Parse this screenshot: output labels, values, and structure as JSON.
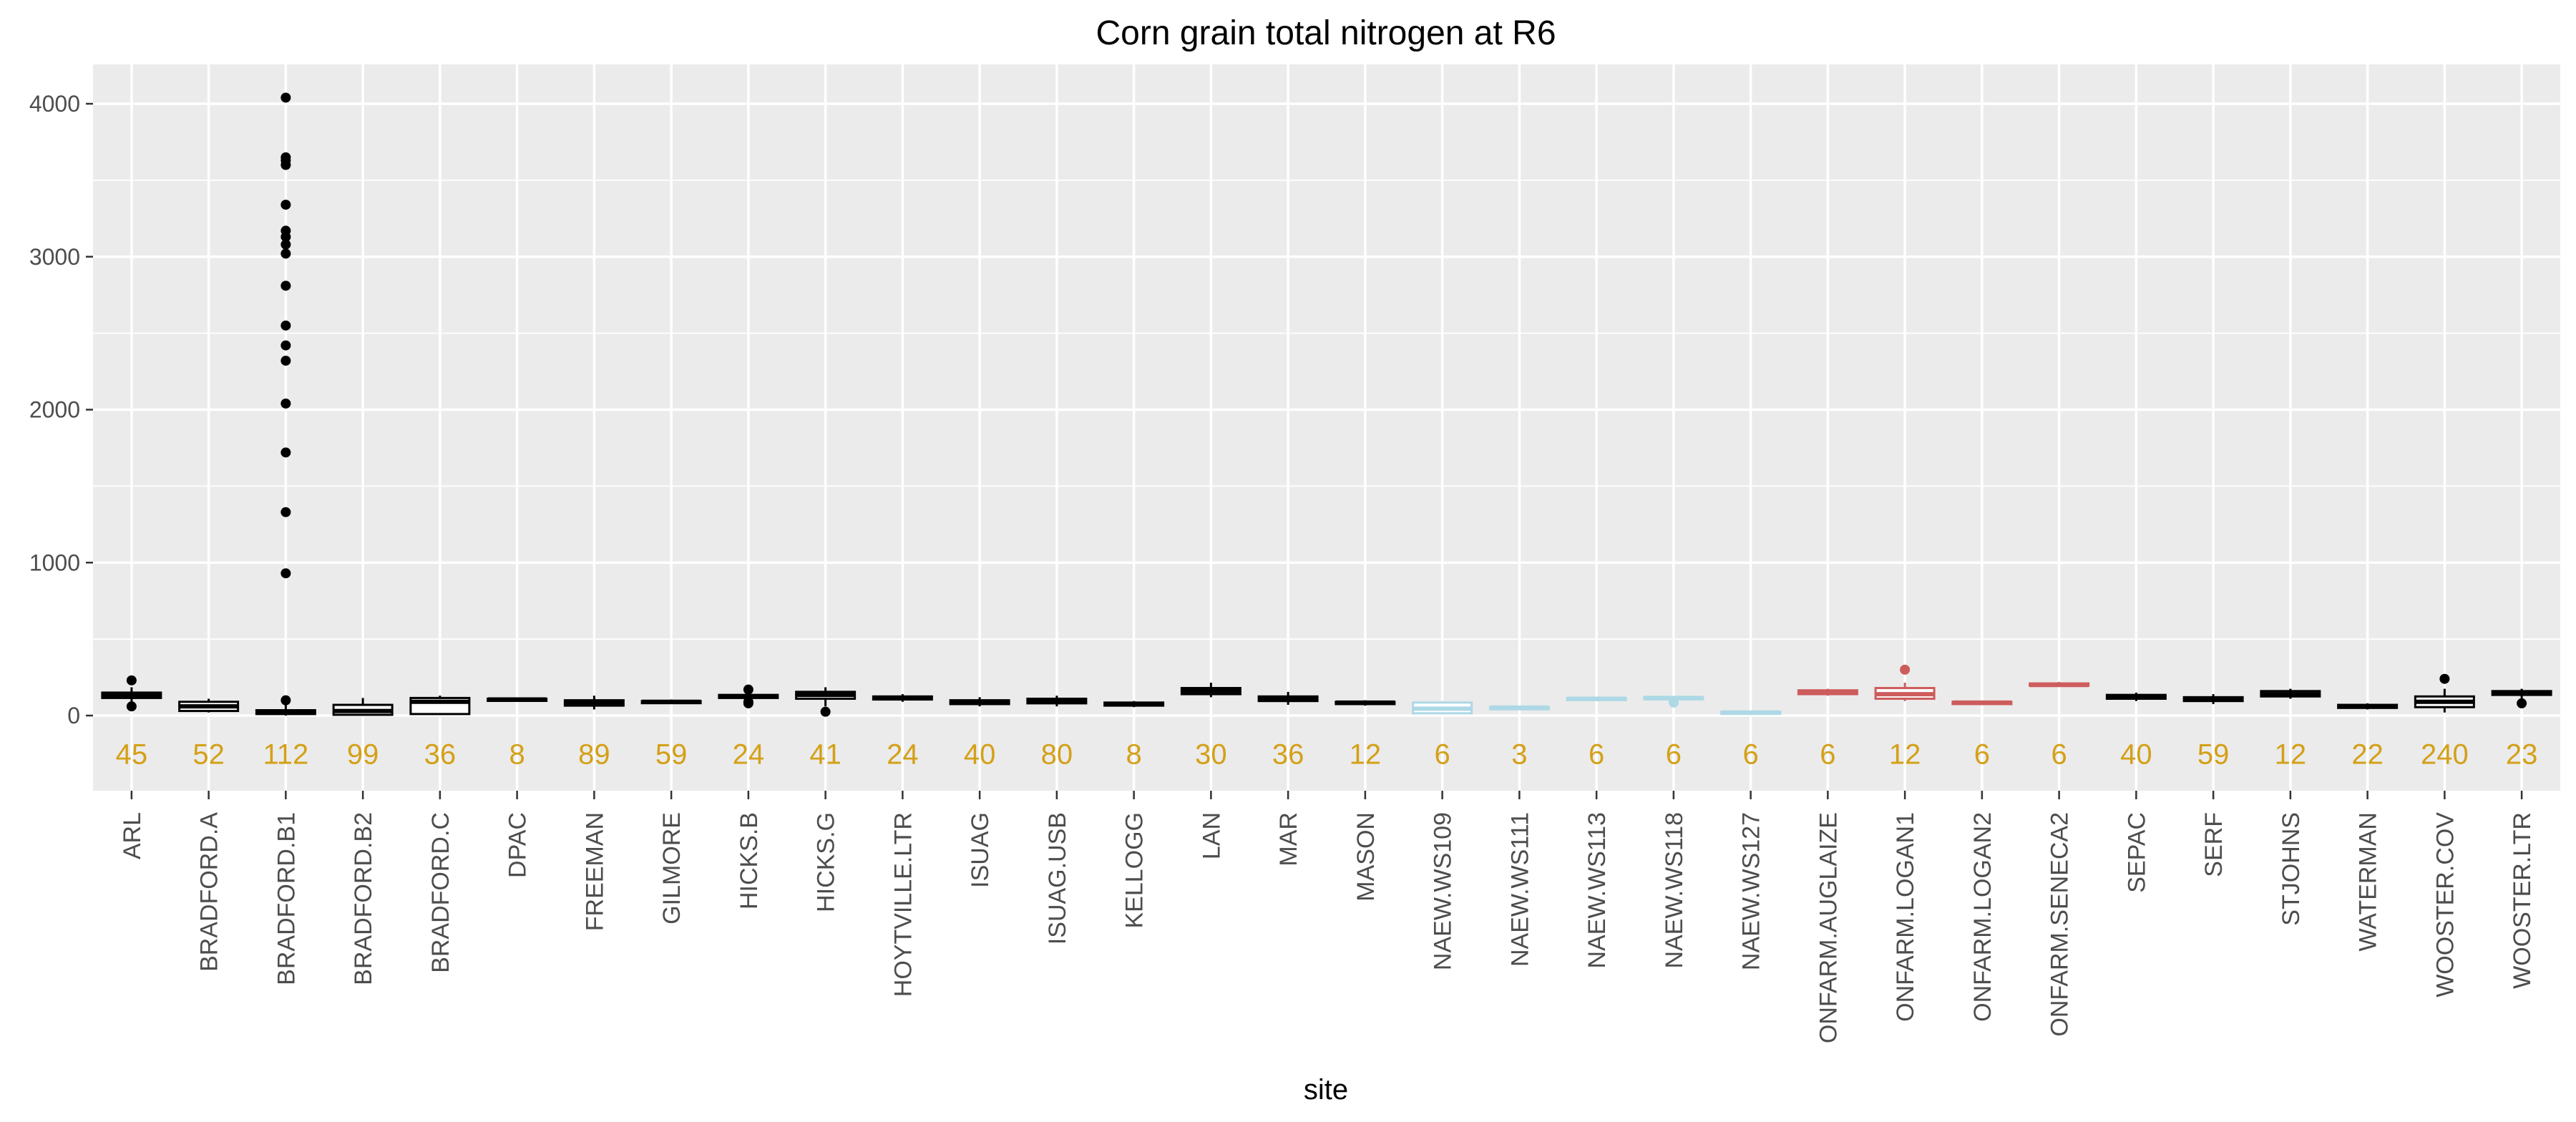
{
  "chart_data": {
    "type": "box",
    "title": "Corn grain total nitrogen at R6",
    "xlabel": "site",
    "ylabel": "",
    "ylim": [
      -500,
      4250
    ],
    "yticks": [
      0,
      1000,
      2000,
      3000,
      4000
    ],
    "grid": true,
    "legend": "none",
    "colors": {
      "panel": "#ebebeb",
      "grid": "#ffffff",
      "default": "#000000",
      "lightblue": "#add8e6",
      "red": "#cd5c5c",
      "count": "#d4a017"
    },
    "categories": [
      "ARL",
      "BRADFORD.A",
      "BRADFORD.B1",
      "BRADFORD.B2",
      "BRADFORD.C",
      "DPAC",
      "FREEMAN",
      "GILMORE",
      "HICKS.B",
      "HICKS.G",
      "HOYTVILLE.LTR",
      "ISUAG",
      "ISUAG.USB",
      "KELLOGG",
      "LAN",
      "MAR",
      "MASON",
      "NAEW.WS109",
      "NAEW.WS111",
      "NAEW.WS113",
      "NAEW.WS118",
      "NAEW.WS127",
      "ONFARM.AUGLAIZE",
      "ONFARM.LOGAN1",
      "ONFARM.LOGAN2",
      "ONFARM.SENECA2",
      "SEPAC",
      "SERF",
      "STJOHNS",
      "WATERMAN",
      "WOOSTER.COV",
      "WOOSTER.LTR"
    ],
    "counts": [
      "45",
      "52",
      "112",
      "99",
      "36",
      "8",
      "89",
      "59",
      "24",
      "41",
      "24",
      "40",
      "80",
      "8",
      "30",
      "36",
      "12",
      "6",
      "3",
      "6",
      "6",
      "6",
      "6",
      "12",
      "6",
      "6",
      "40",
      "59",
      "12",
      "22",
      "240",
      "23"
    ],
    "count_y": -250,
    "boxes": [
      {
        "min": 70,
        "q1": 115,
        "median": 130,
        "q3": 150,
        "max": 185,
        "outliers": [
          60,
          230
        ],
        "color": "default"
      },
      {
        "min": 20,
        "q1": 30,
        "median": 60,
        "q3": 90,
        "max": 110,
        "outliers": [],
        "color": "default"
      },
      {
        "min": 0,
        "q1": 10,
        "median": 20,
        "q3": 35,
        "max": 80,
        "outliers": [
          100,
          930,
          1330,
          1720,
          2040,
          2320,
          2420,
          2550,
          2810,
          3020,
          3080,
          3130,
          3170,
          3340,
          3600,
          3630,
          3650,
          4040
        ],
        "color": "default"
      },
      {
        "min": 0,
        "q1": 5,
        "median": 30,
        "q3": 70,
        "max": 115,
        "outliers": [],
        "color": "default"
      },
      {
        "min": 5,
        "q1": 10,
        "median": 90,
        "q3": 115,
        "max": 130,
        "outliers": [],
        "color": "default"
      },
      {
        "min": 95,
        "q1": 100,
        "median": 105,
        "q3": 110,
        "max": 115,
        "outliers": [],
        "color": "default"
      },
      {
        "min": 40,
        "q1": 65,
        "median": 85,
        "q3": 100,
        "max": 130,
        "outliers": [],
        "color": "default"
      },
      {
        "min": 75,
        "q1": 85,
        "median": 90,
        "q3": 95,
        "max": 105,
        "outliers": [],
        "color": "default"
      },
      {
        "min": 100,
        "q1": 115,
        "median": 125,
        "q3": 135,
        "max": 150,
        "outliers": [
          80,
          90,
          170
        ],
        "color": "default"
      },
      {
        "min": 60,
        "q1": 110,
        "median": 135,
        "q3": 155,
        "max": 185,
        "outliers": [
          25
        ],
        "color": "default"
      },
      {
        "min": 90,
        "q1": 105,
        "median": 115,
        "q3": 125,
        "max": 140,
        "outliers": [],
        "color": "default"
      },
      {
        "min": 60,
        "q1": 75,
        "median": 85,
        "q3": 100,
        "max": 120,
        "outliers": [],
        "color": "default"
      },
      {
        "min": 60,
        "q1": 80,
        "median": 95,
        "q3": 110,
        "max": 130,
        "outliers": [],
        "color": "default"
      },
      {
        "min": 55,
        "q1": 65,
        "median": 75,
        "q3": 85,
        "max": 95,
        "outliers": [],
        "color": "default"
      },
      {
        "min": 120,
        "q1": 140,
        "median": 160,
        "q3": 180,
        "max": 215,
        "outliers": [],
        "color": "default"
      },
      {
        "min": 70,
        "q1": 95,
        "median": 110,
        "q3": 125,
        "max": 155,
        "outliers": [],
        "color": "default"
      },
      {
        "min": 65,
        "q1": 75,
        "median": 85,
        "q3": 90,
        "max": 100,
        "outliers": [],
        "color": "default"
      },
      {
        "min": 10,
        "q1": 15,
        "median": 45,
        "q3": 85,
        "max": 95,
        "outliers": [],
        "color": "lightblue"
      },
      {
        "min": 45,
        "q1": 48,
        "median": 52,
        "q3": 55,
        "max": 58,
        "outliers": [],
        "color": "lightblue"
      },
      {
        "min": 100,
        "q1": 105,
        "median": 110,
        "q3": 115,
        "max": 120,
        "outliers": [],
        "color": "lightblue"
      },
      {
        "min": 105,
        "q1": 110,
        "median": 115,
        "q3": 120,
        "max": 125,
        "outliers": [
          85
        ],
        "color": "lightblue"
      },
      {
        "min": 10,
        "q1": 15,
        "median": 20,
        "q3": 25,
        "max": 30,
        "outliers": [],
        "color": "lightblue"
      },
      {
        "min": 130,
        "q1": 140,
        "median": 150,
        "q3": 165,
        "max": 175,
        "outliers": [],
        "color": "red"
      },
      {
        "min": 95,
        "q1": 110,
        "median": 140,
        "q3": 180,
        "max": 215,
        "outliers": [
          300
        ],
        "color": "red"
      },
      {
        "min": 70,
        "q1": 75,
        "median": 85,
        "q3": 90,
        "max": 95,
        "outliers": [],
        "color": "red"
      },
      {
        "min": 190,
        "q1": 195,
        "median": 200,
        "q3": 210,
        "max": 220,
        "outliers": [],
        "color": "red"
      },
      {
        "min": 95,
        "q1": 110,
        "median": 120,
        "q3": 135,
        "max": 150,
        "outliers": [],
        "color": "default"
      },
      {
        "min": 75,
        "q1": 95,
        "median": 110,
        "q3": 120,
        "max": 140,
        "outliers": [],
        "color": "default"
      },
      {
        "min": 110,
        "q1": 125,
        "median": 140,
        "q3": 160,
        "max": 175,
        "outliers": [],
        "color": "default"
      },
      {
        "min": 40,
        "q1": 50,
        "median": 60,
        "q3": 70,
        "max": 80,
        "outliers": [],
        "color": "default"
      },
      {
        "min": 20,
        "q1": 55,
        "median": 90,
        "q3": 125,
        "max": 175,
        "outliers": [
          240
        ],
        "color": "default"
      },
      {
        "min": 100,
        "q1": 135,
        "median": 150,
        "q3": 160,
        "max": 175,
        "outliers": [
          80
        ],
        "color": "default"
      }
    ]
  }
}
